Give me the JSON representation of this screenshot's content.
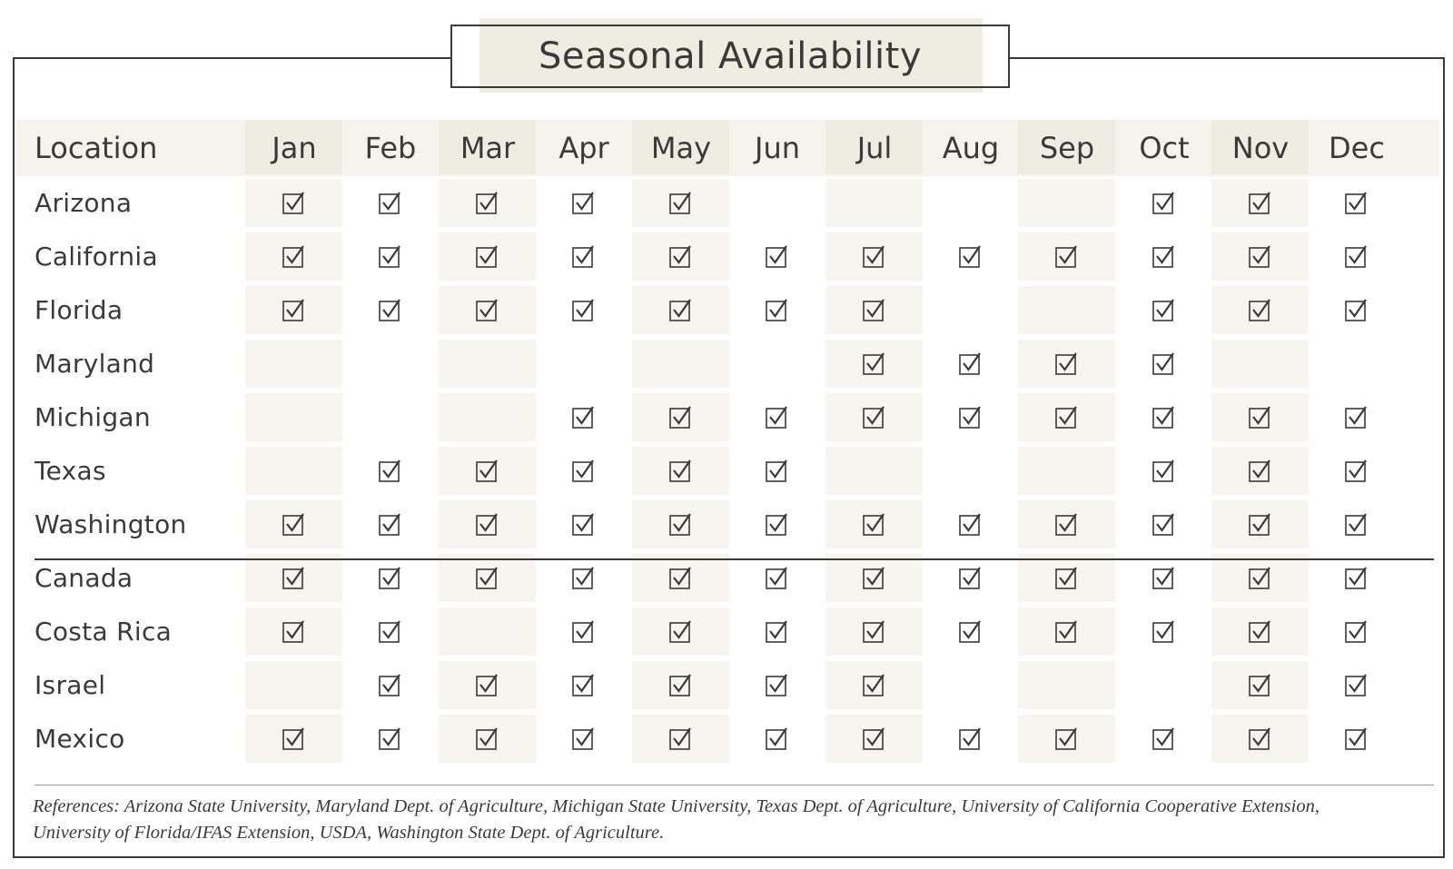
{
  "title": "Seasonal Availability",
  "header": {
    "location_label": "Location",
    "months": [
      "Jan",
      "Feb",
      "Mar",
      "Apr",
      "May",
      "Jun",
      "Jul",
      "Aug",
      "Sep",
      "Oct",
      "Nov",
      "Dec"
    ]
  },
  "domestic": [
    {
      "location": "Arizona",
      "available": [
        1,
        1,
        1,
        1,
        1,
        0,
        0,
        0,
        0,
        1,
        1,
        1
      ]
    },
    {
      "location": "California",
      "available": [
        1,
        1,
        1,
        1,
        1,
        1,
        1,
        1,
        1,
        1,
        1,
        1
      ]
    },
    {
      "location": "Florida",
      "available": [
        1,
        1,
        1,
        1,
        1,
        1,
        1,
        0,
        0,
        1,
        1,
        1
      ]
    },
    {
      "location": "Maryland",
      "available": [
        0,
        0,
        0,
        0,
        0,
        0,
        1,
        1,
        1,
        1,
        0,
        0
      ]
    },
    {
      "location": "Michigan",
      "available": [
        0,
        0,
        0,
        1,
        1,
        1,
        1,
        1,
        1,
        1,
        1,
        1
      ]
    },
    {
      "location": "Texas",
      "available": [
        0,
        1,
        1,
        1,
        1,
        1,
        0,
        0,
        0,
        1,
        1,
        1
      ]
    },
    {
      "location": "Washington",
      "available": [
        1,
        1,
        1,
        1,
        1,
        1,
        1,
        1,
        1,
        1,
        1,
        1
      ]
    }
  ],
  "international": [
    {
      "location": "Canada",
      "available": [
        1,
        1,
        1,
        1,
        1,
        1,
        1,
        1,
        1,
        1,
        1,
        1
      ]
    },
    {
      "location": "Costa Rica",
      "available": [
        1,
        1,
        0,
        1,
        1,
        1,
        1,
        1,
        1,
        1,
        1,
        1
      ]
    },
    {
      "location": "Israel",
      "available": [
        0,
        1,
        1,
        1,
        1,
        1,
        1,
        0,
        0,
        0,
        1,
        1
      ]
    },
    {
      "location": "Mexico",
      "available": [
        1,
        1,
        1,
        1,
        1,
        1,
        1,
        1,
        1,
        1,
        1,
        1
      ]
    }
  ],
  "references_line1": "References: Arizona State University, Maryland Dept. of Agriculture, Michigan State University, Texas Dept. of Agriculture, University of California Cooperative Extension,",
  "references_line2": "University of Florida/IFAS Extension, USDA, Washington State Dept. of Agriculture.",
  "colors": {
    "shade": "#eeede1",
    "light_shade": "#f6f5ef",
    "ink": "#3a3a3a"
  },
  "icons": {
    "check": "checked-box-icon"
  }
}
